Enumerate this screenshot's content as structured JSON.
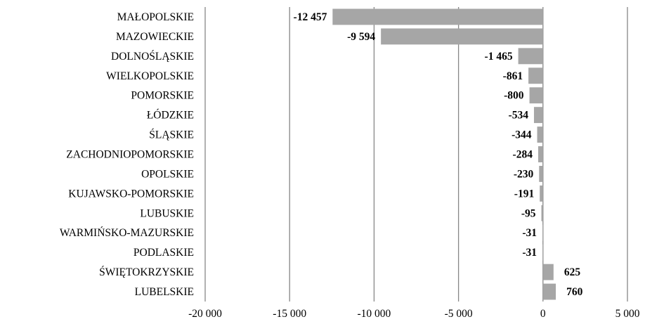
{
  "chart_data": {
    "type": "bar",
    "orientation": "horizontal",
    "categories": [
      "MAŁOPOLSKIE",
      "MAZOWIECKIE",
      "DOLNOŚLĄSKIE",
      "WIELKOPOLSKIE",
      "POMORSKIE",
      "ŁÓDZKIE",
      "ŚLĄSKIE",
      "ZACHODNIOPOMORSKIE",
      "OPOLSKIE",
      "KUJAWSKO-POMORSKIE",
      "LUBUSKIE",
      "WARMIŃSKO-MAZURSKIE",
      "PODLASKIE",
      "ŚWIĘTOKRZYSKIE",
      "LUBELSKIE"
    ],
    "values": [
      -12457,
      -9594,
      -1465,
      -861,
      -800,
      -534,
      -344,
      -284,
      -230,
      -191,
      -95,
      -31,
      -31,
      625,
      760
    ],
    "data_labels": [
      "-12 457",
      "-9 594",
      "-1 465",
      "-861",
      "-800",
      "-534",
      "-344",
      "-284",
      "-230",
      "-191",
      "-95",
      "-31",
      "-31",
      "625",
      "760"
    ],
    "xlim": [
      -20000,
      5000
    ],
    "xticks": [
      -20000,
      -15000,
      -10000,
      -5000,
      0,
      5000
    ],
    "xtick_labels": [
      "-20 000",
      "-15 000",
      "-10 000",
      "-5 000",
      "0",
      "5 000"
    ],
    "grid": "vertical",
    "legend": "none",
    "title": "",
    "xlabel": "",
    "ylabel": "",
    "colors": {
      "bar": "#a6a6a6",
      "grid": "#878787",
      "text": "#000000"
    }
  }
}
